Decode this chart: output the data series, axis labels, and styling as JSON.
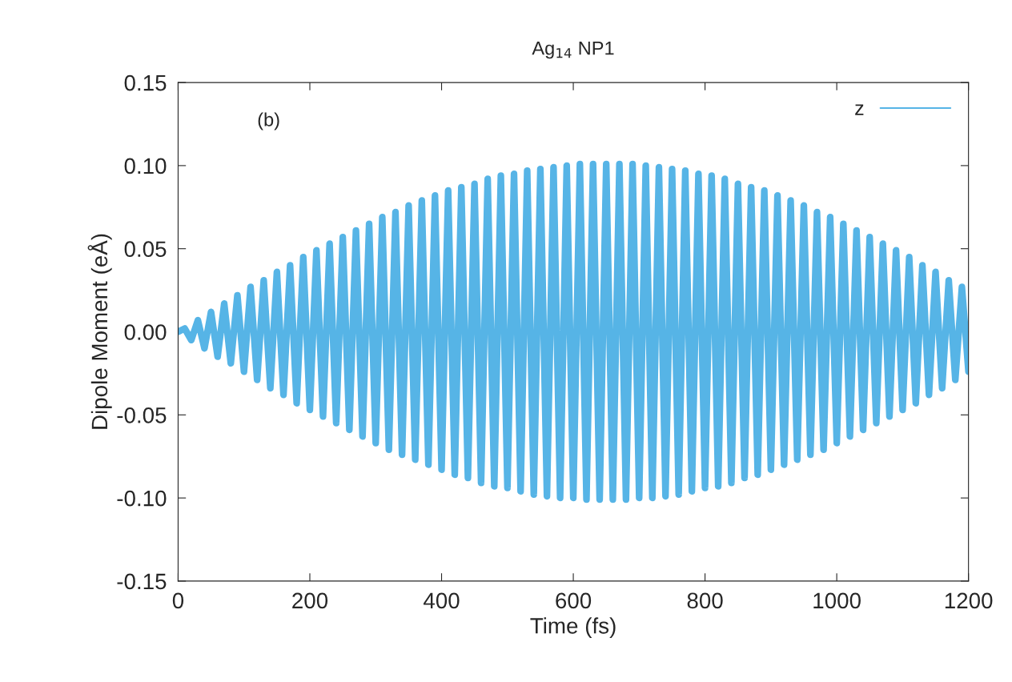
{
  "chart_data": {
    "type": "line",
    "title": "Ag$_{14}$ NP1",
    "xlabel": "Time (fs)",
    "ylabel": "Dipole Moment (eÅ)",
    "annotations": [
      "(b)"
    ],
    "x": [
      0,
      10,
      20,
      30,
      40,
      50,
      60,
      70,
      80,
      90,
      100,
      110,
      120,
      130,
      140,
      150,
      160,
      170,
      180,
      190,
      200,
      210,
      220,
      230,
      240,
      250,
      260,
      270,
      280,
      290,
      300,
      310,
      320,
      330,
      340,
      350,
      360,
      370,
      380,
      390,
      400,
      410,
      420,
      430,
      440,
      450,
      460,
      470,
      480,
      490,
      500,
      510,
      520,
      530,
      540,
      550,
      560,
      570,
      580,
      590,
      600,
      610,
      620,
      630,
      640,
      650,
      660,
      670,
      680,
      690,
      700,
      710,
      720,
      730,
      740,
      750,
      760,
      770,
      780,
      790,
      800,
      810,
      820,
      830,
      840,
      850,
      860,
      870,
      880,
      890,
      900,
      910,
      920,
      930,
      940,
      950,
      960,
      970,
      980,
      990,
      1000,
      1010,
      1020,
      1030,
      1040,
      1050,
      1060,
      1070,
      1080,
      1090,
      1100,
      1110,
      1120,
      1130,
      1140,
      1150,
      1160,
      1170,
      1180,
      1190,
      1200
    ],
    "series": [
      {
        "name": "z",
        "color": "#56b4e6",
        "values": [
          0,
          0.002,
          -0.005,
          0.007,
          -0.01,
          0.012,
          -0.015,
          0.017,
          -0.019,
          0.022,
          -0.024,
          0.027,
          -0.029,
          0.031,
          -0.034,
          0.036,
          -0.038,
          0.04,
          -0.043,
          0.045,
          -0.047,
          0.049,
          -0.051,
          0.053,
          -0.055,
          0.057,
          -0.059,
          0.061,
          -0.063,
          0.065,
          -0.067,
          0.069,
          -0.071,
          0.072,
          -0.074,
          0.076,
          -0.077,
          0.079,
          -0.08,
          0.082,
          -0.083,
          0.085,
          -0.086,
          0.087,
          -0.088,
          0.089,
          -0.091,
          0.092,
          -0.093,
          0.094,
          -0.094,
          0.095,
          -0.096,
          0.097,
          -0.098,
          0.098,
          -0.099,
          0.099,
          -0.1,
          0.1,
          -0.1,
          0.101,
          -0.101,
          0.101,
          -0.101,
          0.101,
          -0.101,
          0.101,
          -0.101,
          0.101,
          -0.1,
          0.1,
          -0.1,
          0.099,
          -0.099,
          0.098,
          -0.098,
          0.097,
          -0.096,
          0.095,
          -0.094,
          0.094,
          -0.093,
          0.092,
          -0.091,
          0.089,
          -0.088,
          0.087,
          -0.086,
          0.085,
          -0.083,
          0.082,
          -0.08,
          0.079,
          -0.077,
          0.076,
          -0.074,
          0.072,
          -0.071,
          0.069,
          -0.067,
          0.065,
          -0.063,
          0.061,
          -0.059,
          0.057,
          -0.055,
          0.053,
          -0.051,
          0.049,
          -0.047,
          0.045,
          -0.043,
          0.04,
          -0.038,
          0.036,
          -0.034,
          0.031,
          -0.029,
          0.027,
          -0.024
        ]
      }
    ],
    "xlim": [
      0,
      1200
    ],
    "xticks": [
      0,
      200,
      400,
      600,
      800,
      1000,
      1200
    ],
    "ylim": [
      -0.15,
      0.15
    ],
    "yticks": [
      {
        "value": -0.15,
        "label": "-0.15"
      },
      {
        "value": -0.1,
        "label": "-0.10"
      },
      {
        "value": -0.05,
        "label": "-0.05"
      },
      {
        "value": 0,
        "label": "0.00"
      },
      {
        "value": 0.05,
        "label": "0.05"
      },
      {
        "value": 0.1,
        "label": "0.10"
      },
      {
        "value": 0.15,
        "label": "0.15"
      }
    ],
    "legend": "top right",
    "grid": false,
    "marker": "none",
    "line_style": "solid"
  }
}
